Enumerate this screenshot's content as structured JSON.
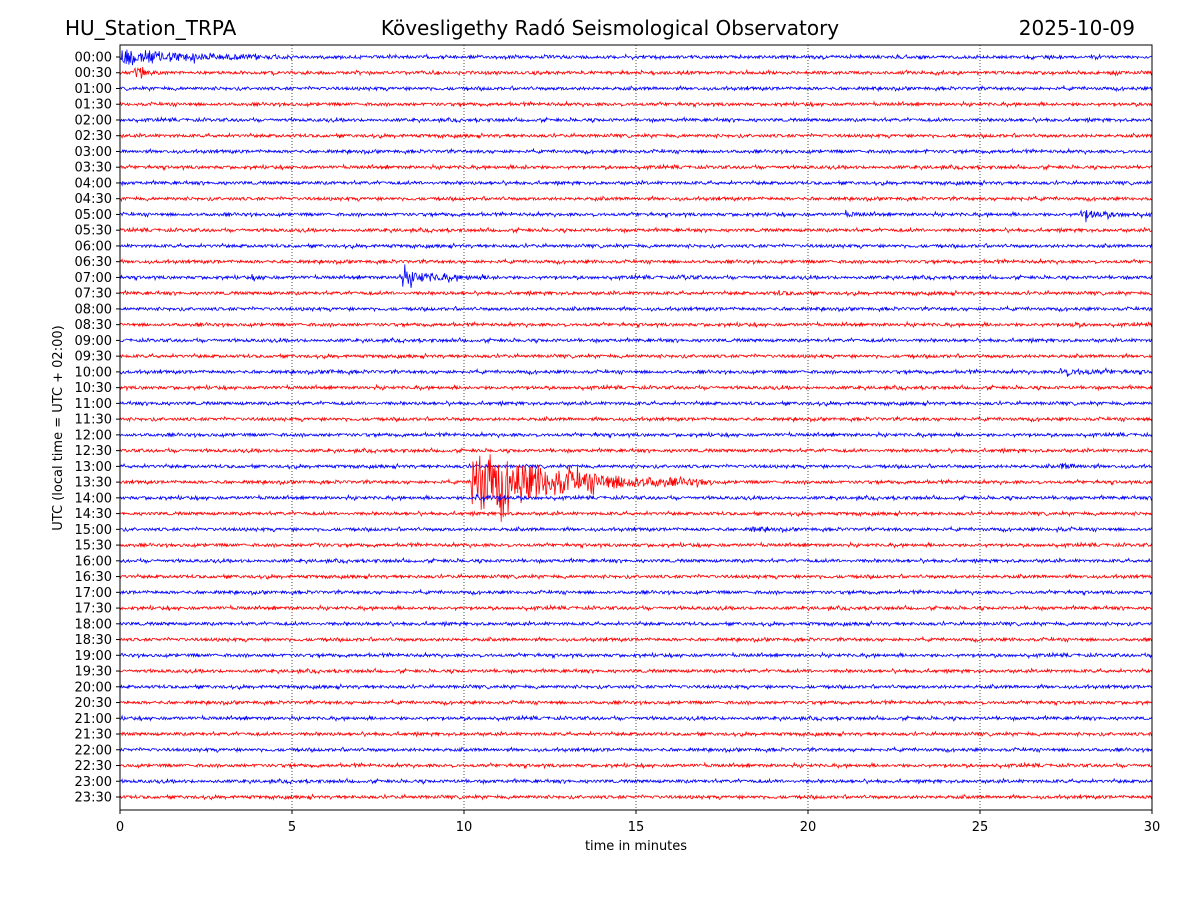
{
  "chart_data": {
    "type": "line",
    "title_left": "HU_Station_TRPA",
    "title": "Kövesligethy Radó Seismological Observatory",
    "title_right": "2025-10-09",
    "xlabel": "time in minutes",
    "ylabel": "UTC (local time = UTC + 02:00)",
    "xlim": [
      0,
      30
    ],
    "xticks": [
      "0",
      "5",
      "10",
      "15",
      "20",
      "25",
      "30"
    ],
    "grid": "vertical dotted",
    "colors": [
      "#0000ff",
      "#ff0000"
    ],
    "rows": [
      "00:00",
      "00:30",
      "01:00",
      "01:30",
      "02:00",
      "02:30",
      "03:00",
      "03:30",
      "04:00",
      "04:30",
      "05:00",
      "05:30",
      "06:00",
      "06:30",
      "07:00",
      "07:30",
      "08:00",
      "08:30",
      "09:00",
      "09:30",
      "10:00",
      "10:30",
      "11:00",
      "11:30",
      "12:00",
      "12:30",
      "13:00",
      "13:30",
      "14:00",
      "14:30",
      "15:00",
      "15:30",
      "16:00",
      "16:30",
      "17:00",
      "17:30",
      "18:00",
      "18:30",
      "19:00",
      "19:30",
      "20:00",
      "20:30",
      "21:00",
      "21:30",
      "22:00",
      "22:30",
      "23:00",
      "23:30"
    ],
    "events": [
      {
        "row": 0,
        "minute": 0.0,
        "amplitude": 9,
        "duration": 5
      },
      {
        "row": 1,
        "minute": 0.4,
        "amplitude": 5,
        "duration": 1
      },
      {
        "row": 6,
        "minute": 23.4,
        "amplitude": 6,
        "duration": 0.1
      },
      {
        "row": 7,
        "minute": 11.7,
        "amplitude": 1.5,
        "duration": 0.6
      },
      {
        "row": 9,
        "minute": 13.8,
        "amplitude": 3.5,
        "duration": 0.1
      },
      {
        "row": 9,
        "minute": 26.0,
        "amplitude": 1.3,
        "duration": 1
      },
      {
        "row": 10,
        "minute": 21.0,
        "amplitude": 1.5,
        "duration": 1.2
      },
      {
        "row": 10,
        "minute": 27.9,
        "amplitude": 4,
        "duration": 2.2
      },
      {
        "row": 14,
        "minute": 3.8,
        "amplitude": 1.5,
        "duration": 0.8
      },
      {
        "row": 14,
        "minute": 8.1,
        "amplitude": 7,
        "duration": 3
      },
      {
        "row": 14,
        "minute": 16.3,
        "amplitude": 1.6,
        "duration": 0.8
      },
      {
        "row": 15,
        "minute": 19.0,
        "amplitude": 1.5,
        "duration": 1.2
      },
      {
        "row": 17,
        "minute": 27.6,
        "amplitude": 2,
        "duration": 0.6
      },
      {
        "row": 20,
        "minute": 6.0,
        "amplitude": 1.5,
        "duration": 1
      },
      {
        "row": 20,
        "minute": 27.3,
        "amplitude": 3,
        "duration": 2.7
      },
      {
        "row": 22,
        "minute": 1.0,
        "amplitude": 2,
        "duration": 0.3
      },
      {
        "row": 24,
        "minute": 13.8,
        "amplitude": 1.5,
        "duration": 0.3
      },
      {
        "row": 26,
        "minute": 27.3,
        "amplitude": 2.5,
        "duration": 1.2
      },
      {
        "row": 27,
        "minute": 10.2,
        "amplitude": 32,
        "duration": 7
      },
      {
        "row": 28,
        "minute": 10.3,
        "amplitude": 2.5,
        "duration": 2
      },
      {
        "row": 30,
        "minute": 18.3,
        "amplitude": 2,
        "duration": 1.2
      },
      {
        "row": 30,
        "minute": 27.2,
        "amplitude": 1.8,
        "duration": 0.6
      },
      {
        "row": 31,
        "minute": 5.6,
        "amplitude": 2.5,
        "duration": 0.5
      }
    ]
  }
}
